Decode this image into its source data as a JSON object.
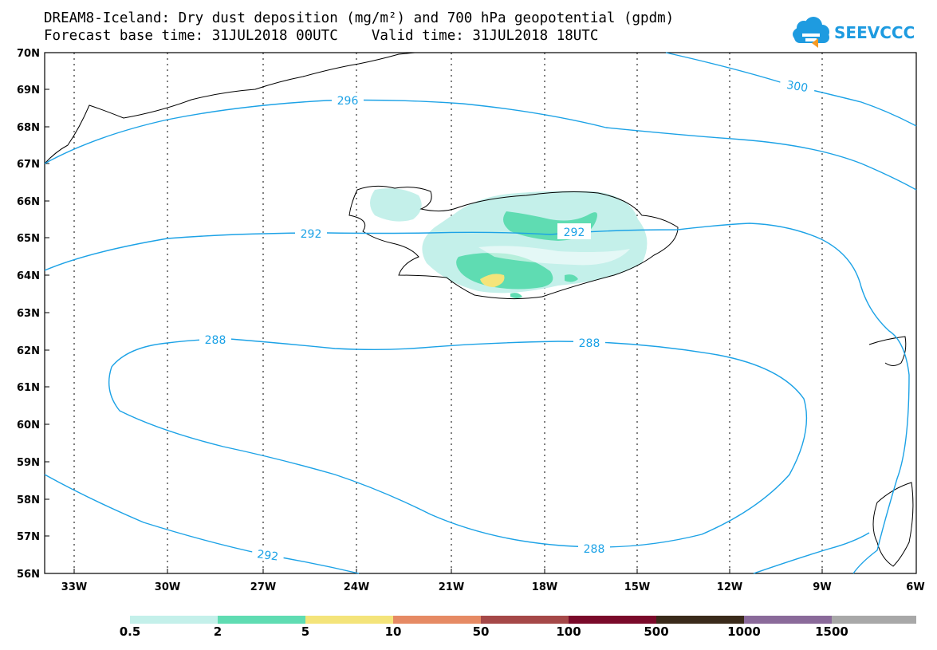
{
  "title": {
    "line1": "DREAM8-Iceland: Dry dust deposition (mg/m²) and 700 hPa geopotential (gpdm)",
    "line2": "Forecast base time: 31JUL2018 00UTC    Valid time: 31JUL2018 18UTC"
  },
  "logo": {
    "text": "SEEVCCC",
    "icon": "cloud-logo-icon",
    "color": "#1e9be0"
  },
  "map": {
    "lat_labels": [
      "70N",
      "69N",
      "68N",
      "67N",
      "66N",
      "65N",
      "64N",
      "63N",
      "62N",
      "61N",
      "60N",
      "59N",
      "58N",
      "57N",
      "56N"
    ],
    "lon_labels": [
      "33W",
      "30W",
      "27W",
      "24W",
      "21W",
      "18W",
      "15W",
      "12W",
      "9W",
      "6W"
    ],
    "contour_labels": {
      "c296": "296",
      "c300": "300",
      "c292_west": "292",
      "c292_east": "292",
      "c288_west": "288",
      "c288_east": "288",
      "c288_south": "288",
      "c292_south": "292"
    },
    "contour_color": "#1ca2e6"
  },
  "legend": {
    "colors": [
      "#c4f0ea",
      "#5fdcb2",
      "#f4e47a",
      "#e68a64",
      "#a54848",
      "#7a0a2a",
      "#3a2a1a",
      "#8a6a9a",
      "#a8a8a8"
    ],
    "labels": [
      "0.5",
      "2",
      "5",
      "10",
      "50",
      "100",
      "500",
      "1000",
      "1500"
    ]
  }
}
